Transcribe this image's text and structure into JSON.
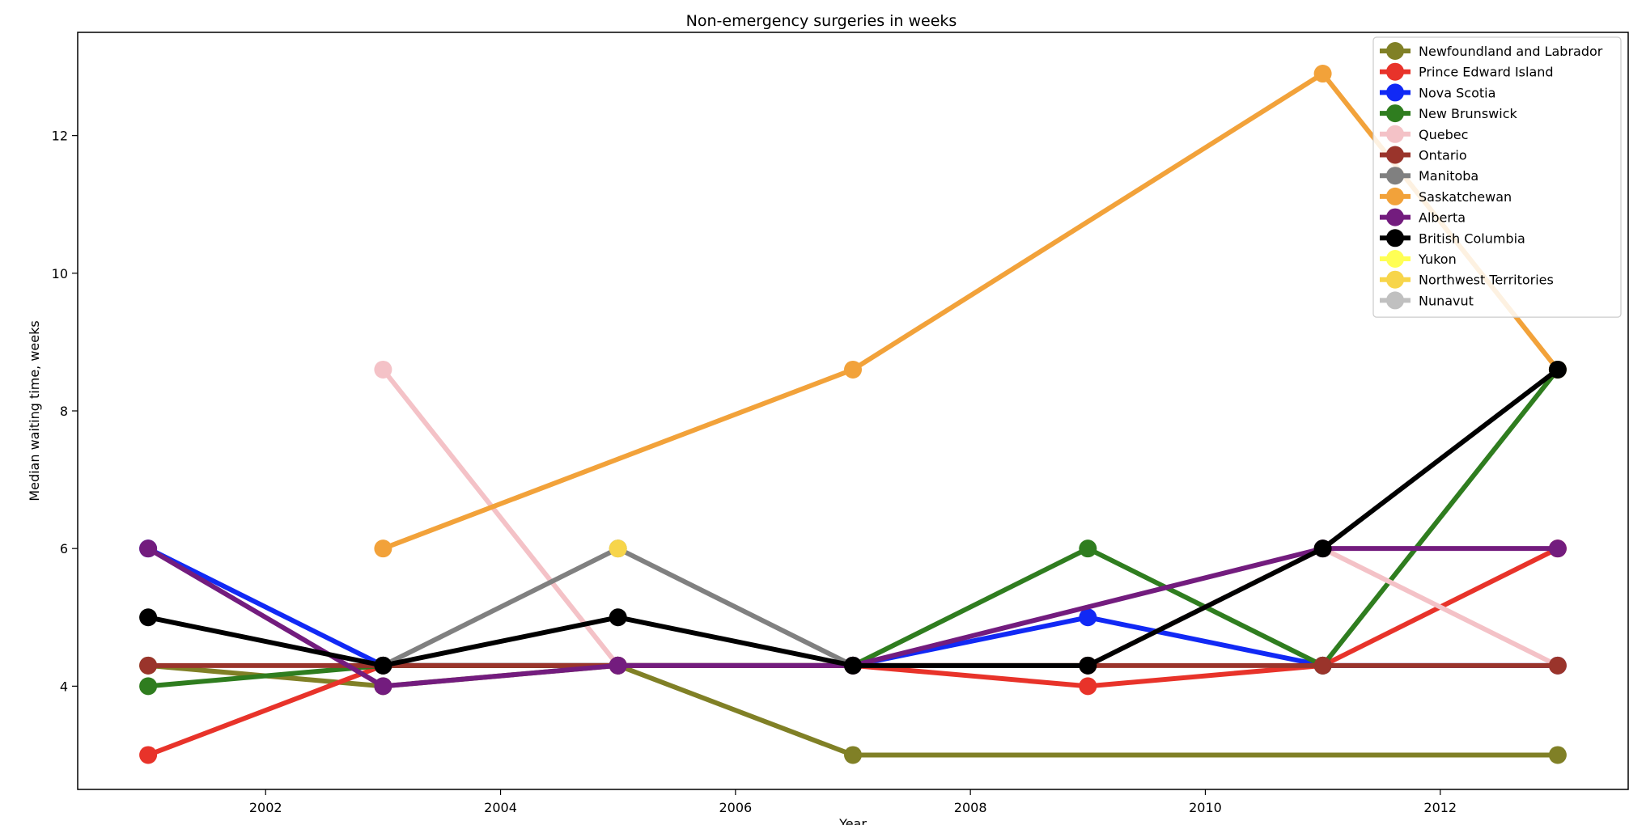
{
  "chart_data": {
    "type": "line",
    "title": "Non-emergency surgeries in weeks",
    "xlabel": "Year",
    "ylabel": "Median waiting time, weeks",
    "xlim": [
      2000.4,
      2013.6
    ],
    "ylim": [
      2.5,
      13.5
    ],
    "xticks": [
      2002,
      2004,
      2006,
      2008,
      2010,
      2012
    ],
    "yticks": [
      4,
      6,
      8,
      10,
      12
    ],
    "grid": false,
    "legend_position": "top-right",
    "series": [
      {
        "name": "Newfoundland and Labrador",
        "color": "#808026",
        "points": [
          [
            2001,
            4.3
          ],
          [
            2003,
            4.0
          ],
          [
            2005,
            4.3
          ],
          [
            2007,
            3.0
          ],
          [
            2013,
            3.0
          ]
        ]
      },
      {
        "name": "Prince Edward Island",
        "color": "#e8332a",
        "points": [
          [
            2001,
            3.0
          ],
          [
            2003,
            4.3
          ],
          [
            2005,
            4.3
          ],
          [
            2007,
            4.3
          ],
          [
            2009,
            4.0
          ],
          [
            2011,
            4.3
          ],
          [
            2013,
            6.0
          ]
        ]
      },
      {
        "name": "Nova Scotia",
        "color": "#1129f5",
        "points": [
          [
            2001,
            6.0
          ],
          [
            2003,
            4.3
          ],
          [
            2005,
            4.3
          ],
          [
            2007,
            4.3
          ],
          [
            2009,
            5.0
          ],
          [
            2011,
            4.3
          ],
          [
            2013,
            4.3
          ]
        ]
      },
      {
        "name": "New Brunswick",
        "color": "#2f7d1f",
        "points": [
          [
            2001,
            4.0
          ],
          [
            2003,
            4.3
          ],
          [
            2005,
            4.3
          ],
          [
            2007,
            4.3
          ],
          [
            2009,
            6.0
          ],
          [
            2011,
            4.3
          ],
          [
            2013,
            8.6
          ]
        ]
      },
      {
        "name": "Quebec",
        "color": "#f4c2c7",
        "points": [
          [
            2003,
            8.6
          ],
          [
            2005,
            4.3
          ],
          [
            2007,
            4.3
          ],
          [
            2009,
            4.3
          ],
          [
            2011,
            6.0
          ],
          [
            2013,
            4.3
          ]
        ]
      },
      {
        "name": "Ontario",
        "color": "#9a342b",
        "points": [
          [
            2001,
            4.3
          ],
          [
            2003,
            4.3
          ],
          [
            2005,
            4.3
          ],
          [
            2007,
            4.3
          ],
          [
            2009,
            4.3
          ],
          [
            2011,
            4.3
          ],
          [
            2013,
            4.3
          ]
        ]
      },
      {
        "name": "Manitoba",
        "color": "#808080",
        "points": [
          [
            2003,
            4.3
          ],
          [
            2005,
            6.0
          ],
          [
            2007,
            4.3
          ]
        ]
      },
      {
        "name": "Saskatchewan",
        "color": "#f2a23a",
        "points": [
          [
            2003,
            6.0
          ],
          [
            2007,
            8.6
          ],
          [
            2011,
            12.9
          ],
          [
            2013,
            8.6
          ]
        ]
      },
      {
        "name": "Alberta",
        "color": "#731c7e",
        "points": [
          [
            2001,
            6.0
          ],
          [
            2003,
            4.0
          ],
          [
            2005,
            4.3
          ],
          [
            2007,
            4.3
          ],
          [
            2011,
            6.0
          ],
          [
            2013,
            6.0
          ]
        ]
      },
      {
        "name": "British Columbia",
        "color": "#000000",
        "points": [
          [
            2001,
            5.0
          ],
          [
            2003,
            4.3
          ],
          [
            2005,
            5.0
          ],
          [
            2007,
            4.3
          ],
          [
            2009,
            4.3
          ],
          [
            2011,
            6.0
          ],
          [
            2013,
            8.6
          ]
        ]
      },
      {
        "name": "Yukon",
        "color": "#ffff55",
        "points": []
      },
      {
        "name": "Northwest Territories",
        "color": "#f7d54a",
        "points": [
          [
            2005,
            6.0
          ]
        ]
      },
      {
        "name": "Nunavut",
        "color": "#c0c0c0",
        "points": []
      }
    ]
  }
}
